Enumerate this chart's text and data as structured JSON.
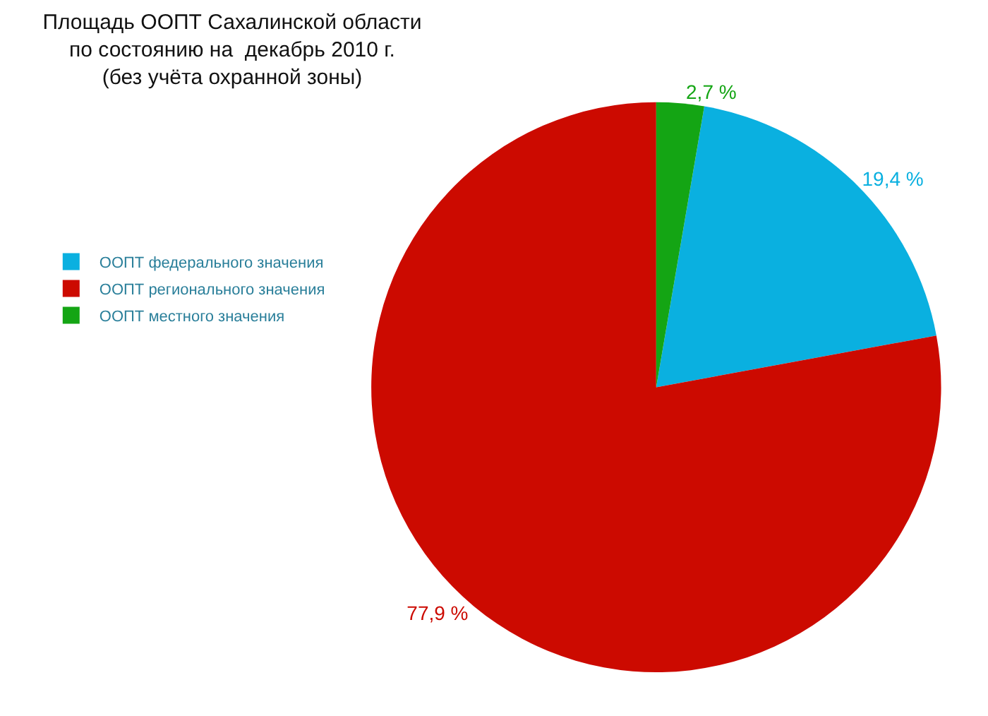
{
  "chart_data": {
    "type": "pie",
    "title": "Площадь ООПТ Сахалинской области\nпо состоянию на  декабрь 2010 г.\n(без учёта охранной зоны)",
    "categories": [
      "ООПТ федерального значения",
      "ООПТ регионального значения",
      "ООПТ местного значения"
    ],
    "values": [
      19.4,
      77.9,
      2.7
    ],
    "colors": [
      "#0ab0e0",
      "#cc0a00",
      "#14a514"
    ],
    "value_labels": [
      "19,4 %",
      "77,9 %",
      "2,7 %"
    ],
    "legend": "left"
  }
}
